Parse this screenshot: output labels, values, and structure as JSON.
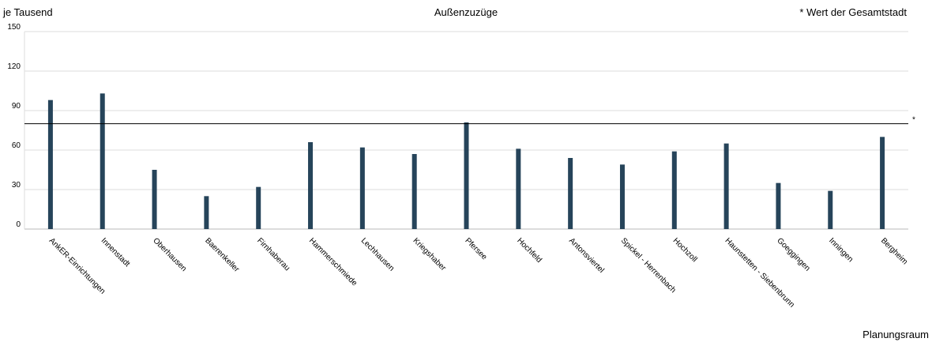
{
  "chart_data": {
    "type": "bar",
    "title": "Außenzuzüge",
    "ylabel": "je Tausend",
    "xlabel": "Planungsraum",
    "note": "* Wert der Gesamtstadt",
    "reference_marker": "*",
    "reference_value": 80,
    "ylim": [
      0,
      150
    ],
    "yticks": [
      0,
      30,
      60,
      90,
      120,
      150
    ],
    "grid": true,
    "bar_color": "#26445a",
    "categories": [
      "AnkER-Einrichtungen",
      "Innenstadt",
      "Oberhausen",
      "Baerenkeller",
      "Firnhaberau",
      "Hammerschmiede",
      "Lechhausen",
      "Kriegshaber",
      "Pfersee",
      "Hochfeld",
      "Antonsviertel",
      "Spickel - Herrenbach",
      "Hochzoll",
      "Haunstetten - Siebenbrunn",
      "Goeggingen",
      "Inningen",
      "Bergheim"
    ],
    "values": [
      98,
      103,
      45,
      25,
      32,
      66,
      62,
      57,
      81,
      61,
      54,
      49,
      59,
      65,
      35,
      29,
      70
    ]
  }
}
